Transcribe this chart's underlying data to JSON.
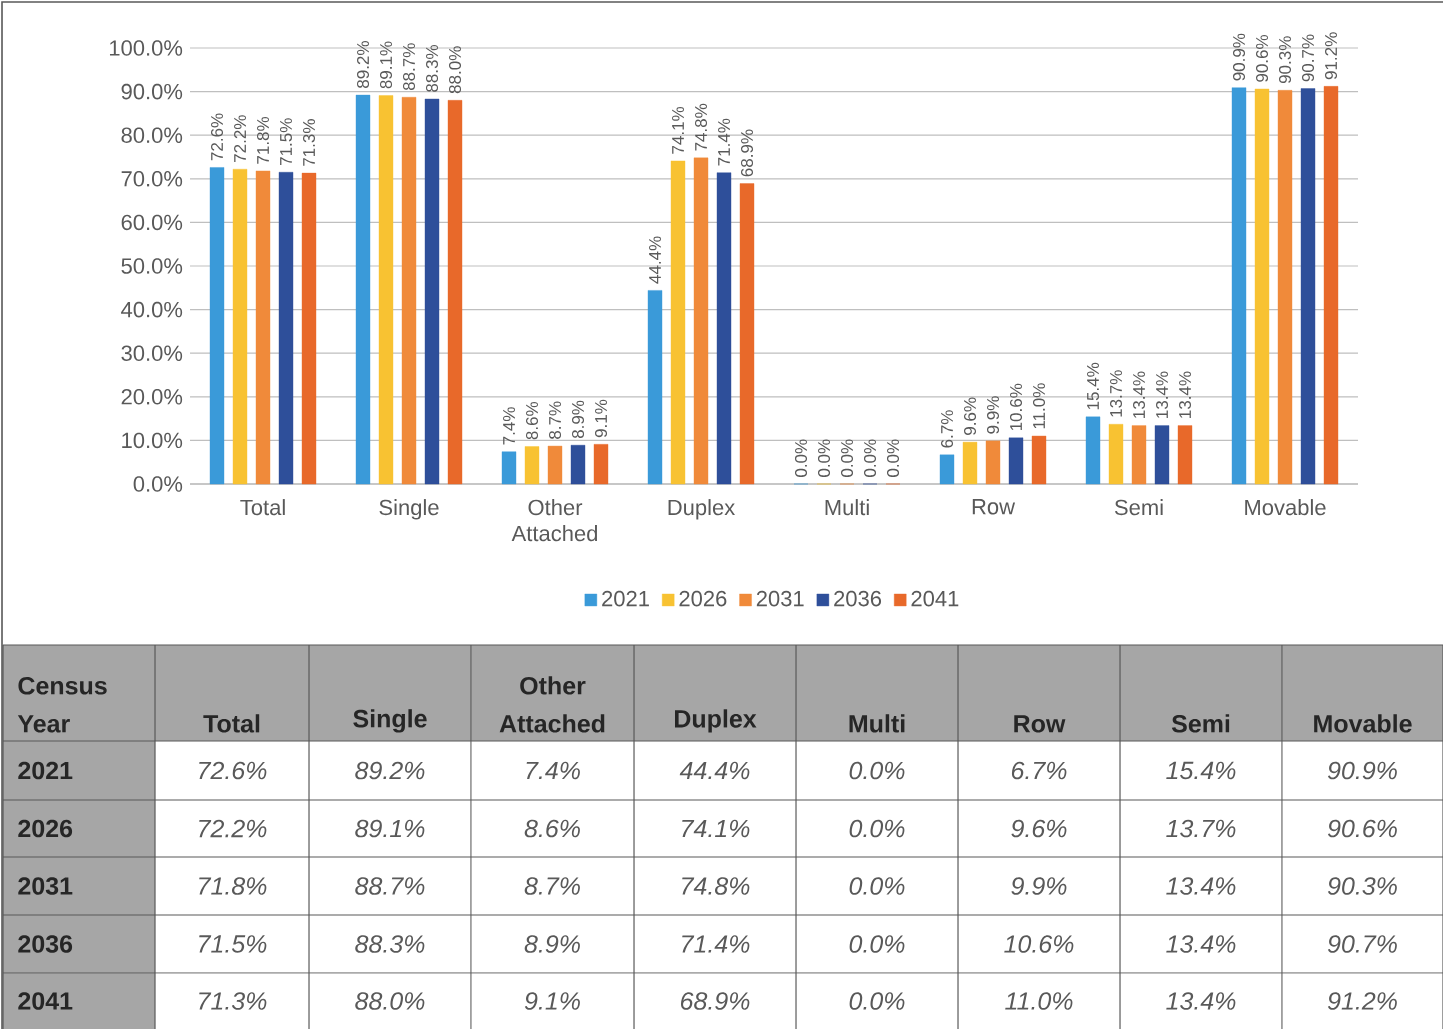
{
  "chart_data": {
    "type": "bar",
    "categories": [
      "Total",
      "Single",
      "Other Attached",
      "Duplex",
      "Multi",
      "Row",
      "Semi",
      "Movable"
    ],
    "series": [
      {
        "name": "2021",
        "color": "#3a9ad9",
        "values": [
          72.6,
          89.2,
          7.4,
          44.4,
          0.0,
          6.7,
          15.4,
          90.9
        ],
        "value_labels": [
          "72.6%",
          "89.2%",
          "7.4%",
          "44.4%",
          "0.0%",
          "6.7%",
          "15.4%",
          "90.9%"
        ]
      },
      {
        "name": "2026",
        "color": "#f8c232",
        "values": [
          72.2,
          89.1,
          8.6,
          74.1,
          0.0,
          9.6,
          13.7,
          90.6
        ],
        "value_labels": [
          "72.2%",
          "89.1%",
          "8.6%",
          "74.1%",
          "0.0%",
          "9.6%",
          "13.7%",
          "90.6%"
        ]
      },
      {
        "name": "2031",
        "color": "#f08a3a",
        "values": [
          71.8,
          88.7,
          8.7,
          74.8,
          0.0,
          9.9,
          13.4,
          90.3
        ],
        "value_labels": [
          "71.8%",
          "88.7%",
          "8.7%",
          "74.8%",
          "0.0%",
          "9.9%",
          "13.4%",
          "90.3%"
        ]
      },
      {
        "name": "2036",
        "color": "#2e4f9a",
        "values": [
          71.5,
          88.3,
          8.9,
          71.4,
          0.0,
          10.6,
          13.4,
          90.7
        ],
        "value_labels": [
          "71.5%",
          "88.3%",
          "8.9%",
          "71.4%",
          "0.0%",
          "10.6%",
          "13.4%",
          "90.7%"
        ]
      },
      {
        "name": "2041",
        "color": "#e8692a",
        "values": [
          71.3,
          88.0,
          9.1,
          68.9,
          0.0,
          11.0,
          13.4,
          91.2
        ],
        "value_labels": [
          "71.3%",
          "88.0%",
          "9.1%",
          "68.9%",
          "0.0%",
          "11.0%",
          "13.4%",
          "91.2%"
        ]
      }
    ],
    "ylim": [
      0,
      100
    ],
    "yticks": [
      {
        "value": 0,
        "label": "0.0%"
      },
      {
        "value": 10,
        "label": "10.0%"
      },
      {
        "value": 20,
        "label": "20.0%"
      },
      {
        "value": 30,
        "label": "30.0%"
      },
      {
        "value": 40,
        "label": "40.0%"
      },
      {
        "value": 50,
        "label": "50.0%"
      },
      {
        "value": 60,
        "label": "60.0%"
      },
      {
        "value": 70,
        "label": "70.0%"
      },
      {
        "value": 80,
        "label": "80.0%"
      },
      {
        "value": 90,
        "label": "90.0%"
      },
      {
        "value": 100,
        "label": "100.0%"
      }
    ],
    "grid": "y",
    "legend": "bottom",
    "annotations": [
      "Census Year"
    ]
  }
}
